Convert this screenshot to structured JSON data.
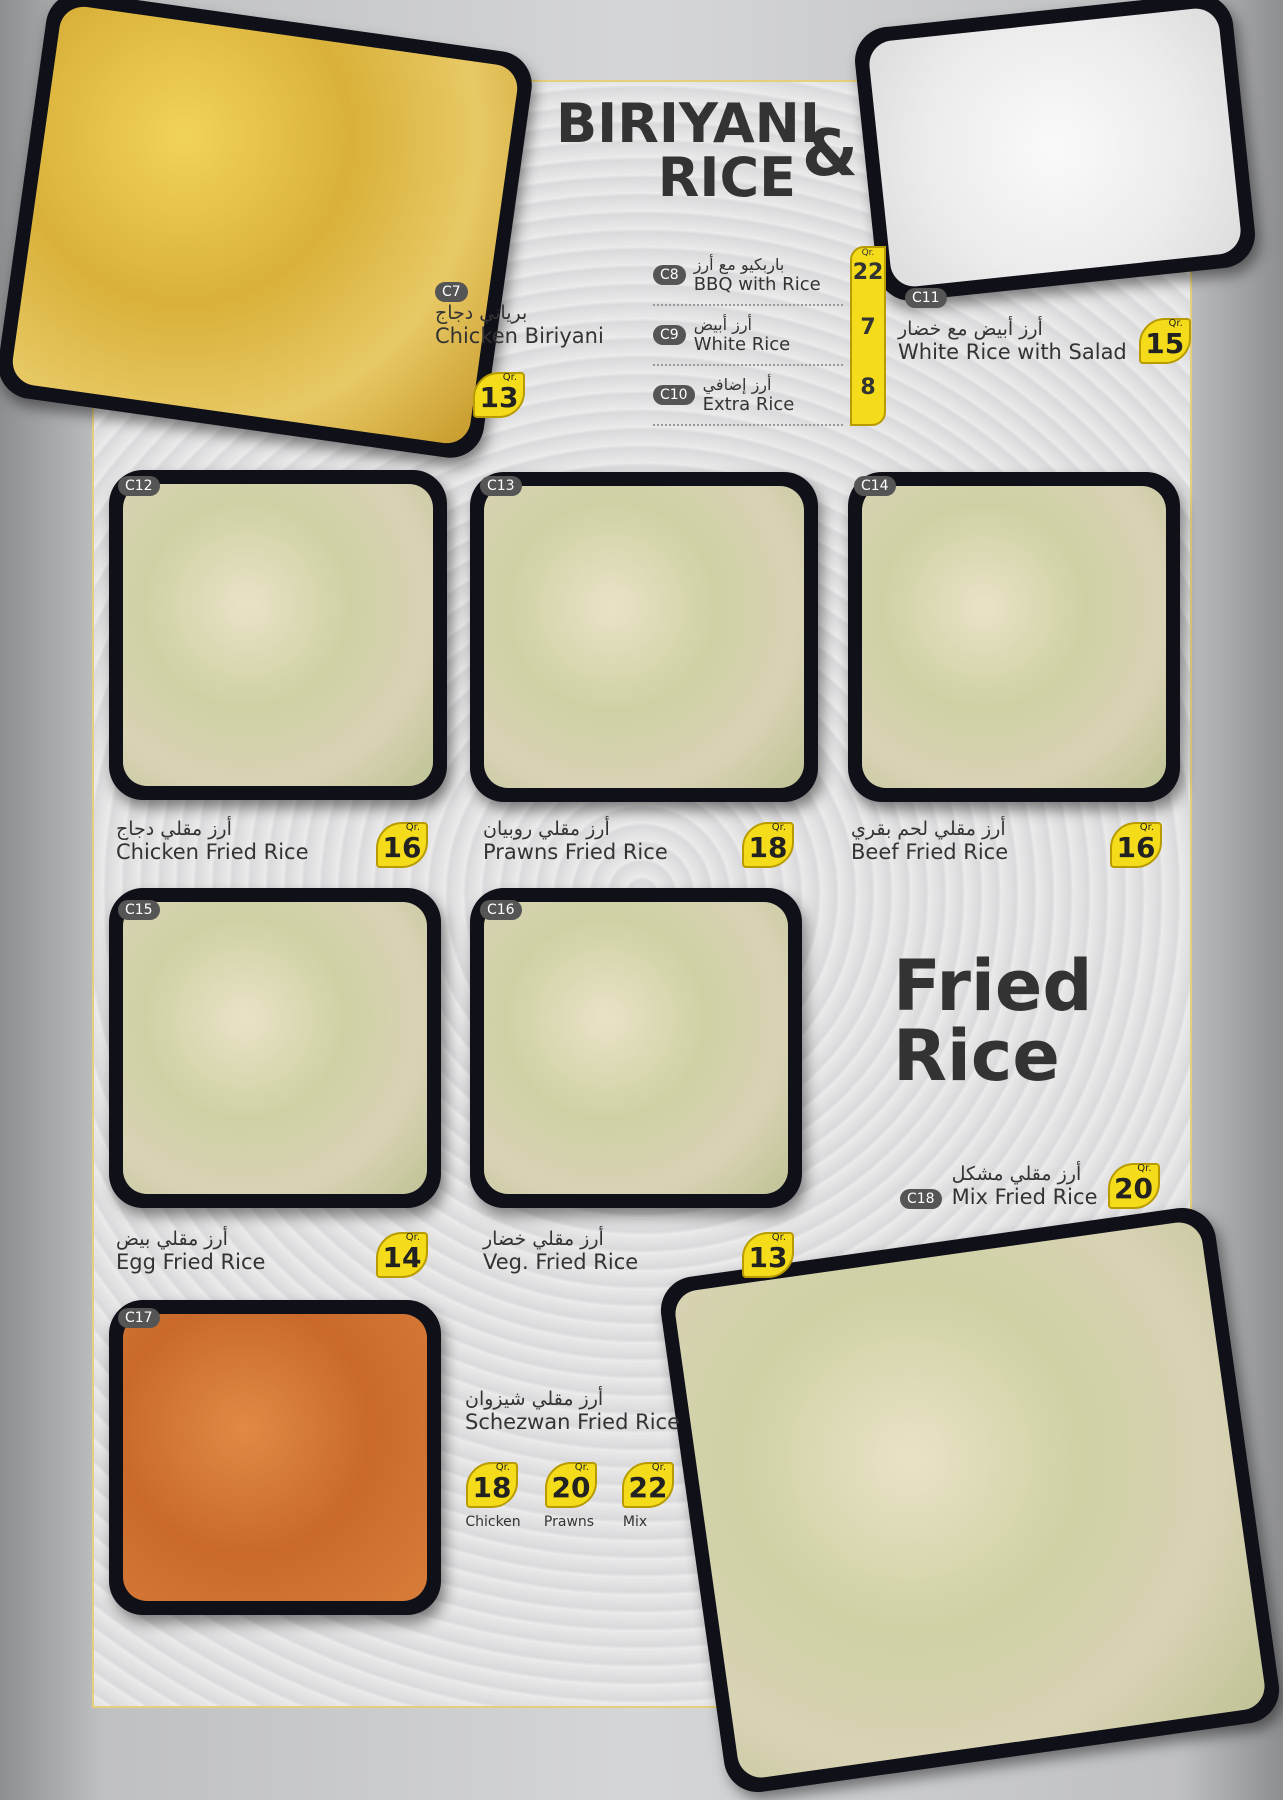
{
  "sections": {
    "biriyani_title_line1": "BIRIYANI",
    "biriyani_title_line2": "RICE",
    "ampersand": "&",
    "fried_title_line1": "Fried",
    "fried_title_line2": "Rice"
  },
  "currency": "Qr.",
  "accent": "#f4dc1a",
  "items": {
    "c7": {
      "code": "C7",
      "ar": "برياني دجاج",
      "en": "Chicken Biriyani",
      "price": "13"
    },
    "c8": {
      "code": "C8",
      "ar": "باربكيو مع أرز",
      "en": "BBQ with Rice",
      "price": "22"
    },
    "c9": {
      "code": "C9",
      "ar": "أرز أبيض",
      "en": "White Rice",
      "price": "7"
    },
    "c10": {
      "code": "C10",
      "ar": "أرز إضافي",
      "en": "Extra Rice",
      "price": "8"
    },
    "c11": {
      "code": "C11",
      "ar": "أرز أبيض مع خضار",
      "en": "White Rice with Salad",
      "price": "15"
    },
    "c12": {
      "code": "C12",
      "ar": "أرز مقلي دجاج",
      "en": "Chicken Fried Rice",
      "price": "16"
    },
    "c13": {
      "code": "C13",
      "ar": "أرز مقلي روبيان",
      "en": "Prawns Fried Rice",
      "price": "18"
    },
    "c14": {
      "code": "C14",
      "ar": "أرز مقلي لحم بقري",
      "en": "Beef Fried Rice",
      "price": "16"
    },
    "c15": {
      "code": "C15",
      "ar": "أرز مقلي بيض",
      "en": "Egg Fried Rice",
      "price": "14"
    },
    "c16": {
      "code": "C16",
      "ar": "أرز مقلي خضار",
      "en": "Veg. Fried Rice",
      "price": "13"
    },
    "c17": {
      "code": "C17",
      "ar": "أرز مقلي شيزوان",
      "en": "Schezwan Fried Rice",
      "options": [
        {
          "label": "Chicken",
          "price": "18"
        },
        {
          "label": "Prawns",
          "price": "20"
        },
        {
          "label": "Mix",
          "price": "22"
        }
      ]
    },
    "c18": {
      "code": "C18",
      "ar": "أرز مقلي مشكل",
      "en": "Mix Fried Rice",
      "price": "20"
    }
  }
}
